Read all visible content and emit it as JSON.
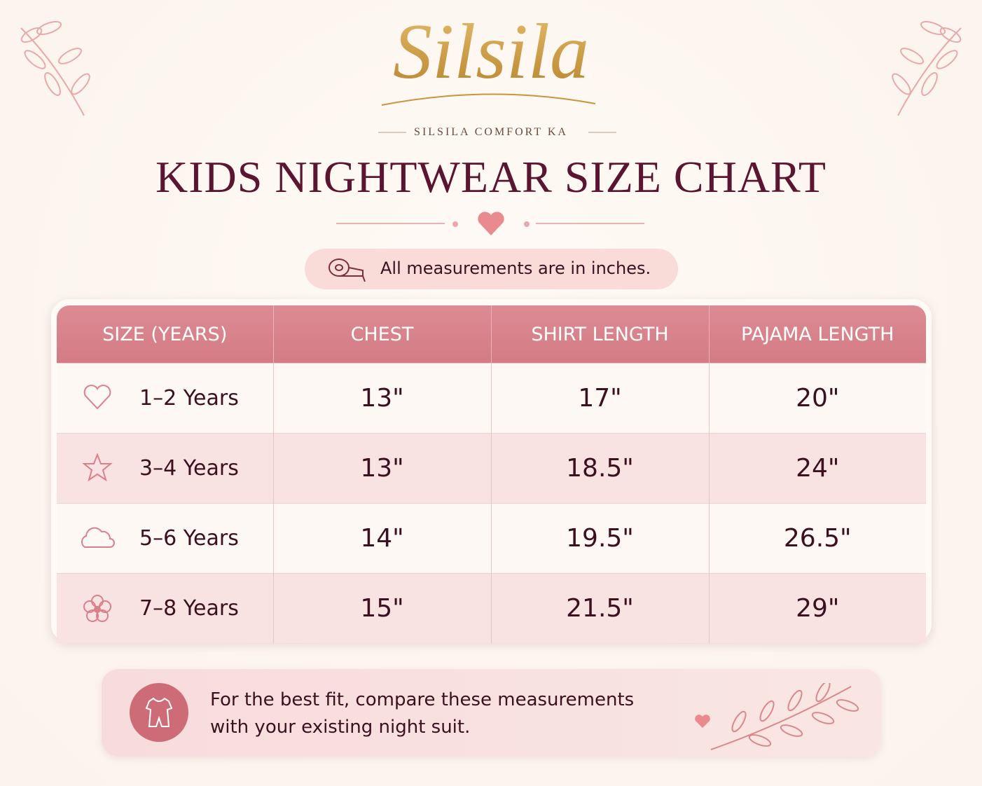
{
  "brand": {
    "name": "Silsila",
    "tagline": "SILSILA COMFORT KA"
  },
  "header": {
    "title": "KIDS NIGHTWEAR SIZE CHART",
    "note": "All measurements are in inches."
  },
  "table": {
    "columns": [
      "SIZE (YEARS)",
      "CHEST",
      "SHIRT LENGTH",
      "PAJAMA LENGTH"
    ],
    "rows": [
      [
        "1–2 Years",
        "13\"",
        "17\"",
        "20\""
      ],
      [
        "3–4 Years",
        "13\"",
        "18.5\"",
        "24\""
      ],
      [
        "5–6 Years",
        "14\"",
        "19.5\"",
        "26.5\""
      ],
      [
        "7–8 Years",
        "15\"",
        "21.5\"",
        "29\""
      ]
    ]
  },
  "footer": {
    "text": "For the best fit, compare these measurements with your existing night suit."
  }
}
